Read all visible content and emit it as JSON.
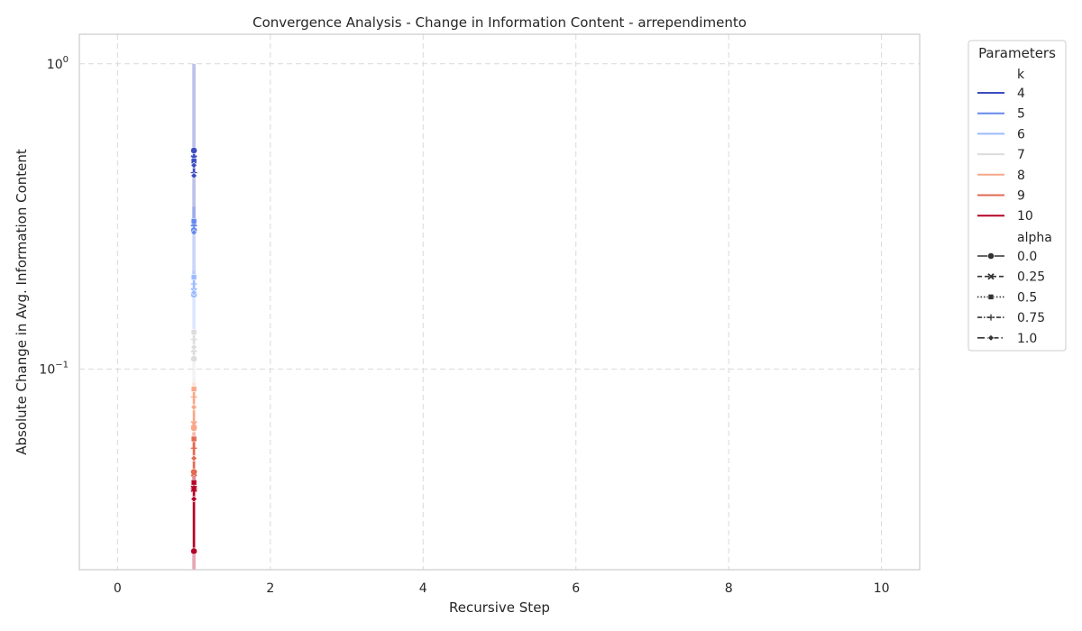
{
  "chart_data": {
    "type": "line",
    "title": "Convergence Analysis - Change in Information Content - arrependimento",
    "xlabel": "Recursive Step",
    "ylabel": "Absolute Change in Avg. Information Content",
    "xlim": [
      -0.5,
      10.5
    ],
    "ylim": [
      0.022,
      1.25
    ],
    "yscale": "log",
    "grid": true,
    "legend_placement": "outside-right",
    "x_ticks": [
      0,
      2,
      4,
      6,
      8,
      10
    ],
    "y_ticks": [
      {
        "base": "10",
        "exp": "0",
        "value": 1
      },
      {
        "base": "10",
        "exp": "−1",
        "value": 0.1
      }
    ],
    "legend": {
      "title": "Parameters",
      "hue_title": "k",
      "style_title": "alpha",
      "k_entries": [
        {
          "label": "4",
          "color": "#3b4cc0"
        },
        {
          "label": "5",
          "color": "#6788ee"
        },
        {
          "label": "6",
          "color": "#9abbff"
        },
        {
          "label": "7",
          "color": "#dddcdc"
        },
        {
          "label": "8",
          "color": "#f7a889"
        },
        {
          "label": "9",
          "color": "#e26952"
        },
        {
          "label": "10",
          "color": "#b40426"
        }
      ],
      "alpha_entries": [
        {
          "label": "0.0",
          "marker": "circle"
        },
        {
          "label": "0.25",
          "marker": "x"
        },
        {
          "label": "0.5",
          "marker": "square"
        },
        {
          "label": "0.75",
          "marker": "plus"
        },
        {
          "label": "1.0",
          "marker": "diamond"
        }
      ]
    },
    "series": [
      {
        "k": "4",
        "color": "#3b4cc0",
        "band": [
          0.3,
          1.0
        ],
        "points": [
          {
            "alpha": "0.0",
            "x": 1,
            "y": 0.52
          },
          {
            "alpha": "0.25",
            "x": 1,
            "y": 0.49
          },
          {
            "alpha": "0.5",
            "x": 1,
            "y": 0.48
          },
          {
            "alpha": "0.75",
            "x": 1,
            "y": 0.44
          },
          {
            "alpha": "1.0",
            "x": 1,
            "y": 0.43
          },
          {
            "alpha": "1.0",
            "x": 1,
            "y": 0.465
          }
        ]
      },
      {
        "k": "5",
        "color": "#6788ee",
        "band": [
          0.2,
          0.34
        ],
        "points": [
          {
            "alpha": "0.0",
            "x": 1,
            "y": 0.285
          },
          {
            "alpha": "0.25",
            "x": 1,
            "y": 0.3
          },
          {
            "alpha": "0.5",
            "x": 1,
            "y": 0.305
          },
          {
            "alpha": "0.75",
            "x": 1,
            "y": 0.295
          },
          {
            "alpha": "1.0",
            "x": 1,
            "y": 0.28
          }
        ]
      },
      {
        "k": "6",
        "color": "#9abbff",
        "band": [
          0.13,
          0.21
        ],
        "points": [
          {
            "alpha": "0.0",
            "x": 1,
            "y": 0.175
          },
          {
            "alpha": "0.25",
            "x": 1,
            "y": 0.18
          },
          {
            "alpha": "0.5",
            "x": 1,
            "y": 0.2
          },
          {
            "alpha": "0.75",
            "x": 1,
            "y": 0.19
          },
          {
            "alpha": "1.0",
            "x": 1,
            "y": 0.178
          }
        ]
      },
      {
        "k": "7",
        "color": "#dddcdc",
        "band": [
          0.09,
          0.135
        ],
        "points": [
          {
            "alpha": "0.0",
            "x": 1,
            "y": 0.108
          },
          {
            "alpha": "0.25",
            "x": 1,
            "y": 0.116
          },
          {
            "alpha": "0.5",
            "x": 1,
            "y": 0.132
          },
          {
            "alpha": "0.75",
            "x": 1,
            "y": 0.125
          },
          {
            "alpha": "1.0",
            "x": 1,
            "y": 0.118
          }
        ]
      },
      {
        "k": "8",
        "color": "#f7a889",
        "band": [
          0.055,
          0.09
        ],
        "points": [
          {
            "alpha": "0.0",
            "x": 1,
            "y": 0.064
          },
          {
            "alpha": "0.25",
            "x": 1,
            "y": 0.066
          },
          {
            "alpha": "0.5",
            "x": 1,
            "y": 0.086
          },
          {
            "alpha": "0.75",
            "x": 1,
            "y": 0.081
          },
          {
            "alpha": "1.0",
            "x": 1,
            "y": 0.075
          }
        ]
      },
      {
        "k": "9",
        "color": "#e26952",
        "band": [
          0.04,
          0.062
        ],
        "points": [
          {
            "alpha": "0.0",
            "x": 1,
            "y": 0.046
          },
          {
            "alpha": "0.25",
            "x": 1,
            "y": 0.0455
          },
          {
            "alpha": "0.5",
            "x": 1,
            "y": 0.059
          },
          {
            "alpha": "0.75",
            "x": 1,
            "y": 0.055
          },
          {
            "alpha": "1.0",
            "x": 1,
            "y": 0.051
          }
        ]
      },
      {
        "k": "10",
        "color": "#b40426",
        "band": [
          0.022,
          0.045
        ],
        "points": [
          {
            "alpha": "0.0",
            "x": 1,
            "y": 0.0253
          },
          {
            "alpha": "0.25",
            "x": 1,
            "y": 0.0405
          },
          {
            "alpha": "0.5",
            "x": 1,
            "y": 0.0425
          },
          {
            "alpha": "0.75",
            "x": 1,
            "y": 0.0405
          },
          {
            "alpha": "1.0",
            "x": 1,
            "y": 0.0375
          }
        ]
      }
    ]
  }
}
